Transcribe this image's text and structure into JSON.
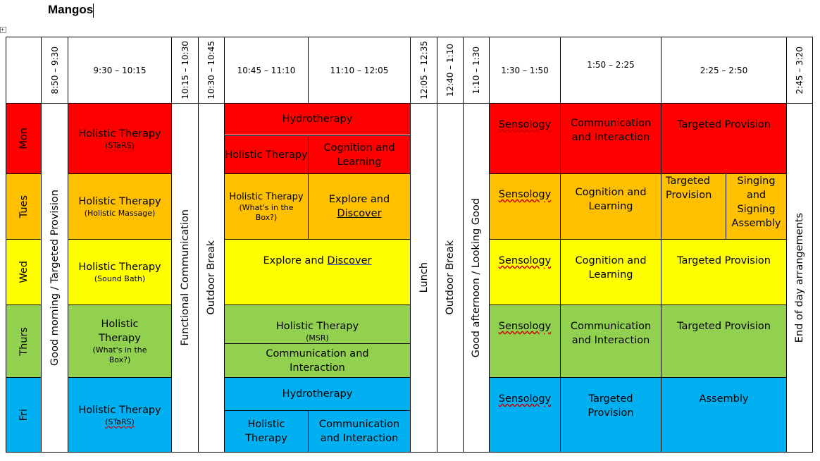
{
  "title": "Mangos",
  "colors": {
    "mon": "#ff0000",
    "tues": "#ffc000",
    "wed": "#ffff00",
    "thurs": "#92d050",
    "fri": "#00b0f0"
  },
  "times": [
    "8:50 – 9:30",
    "9:30 – 10:15",
    "10:15 – 10:30",
    "10:30 – 10:45",
    "10:45 – 11:10",
    "11:10 – 12:05",
    "12:05 – 12:35",
    "12:40 – 1:10",
    "1:10 – 1:30",
    "1:30 – 1:50",
    "1:50 – 2:25",
    "2:25 – 2:50",
    "2:45 – 3:20"
  ],
  "days": [
    "Mon",
    "Tues",
    "Wed",
    "Thurs",
    "Fri"
  ],
  "fixed": {
    "morning": "Good morning / Targeted Provision",
    "func": "Functional Communication",
    "break1": "Outdoor Break",
    "lunch": "Lunch",
    "break2": "Outdoor Break",
    "afternoon": "Good afternoon / Looking Good",
    "end": "End of day arrangements"
  },
  "mon": {
    "p1": "Holistic Therapy",
    "p1s": "(STaRS)",
    "hydro": "Hydrotherapy",
    "a": "Holistic Therapy",
    "b": "Cognition and Learning",
    "s": "Sensology",
    "c": "Communication and Interaction",
    "d": "Targeted Provision"
  },
  "tues": {
    "p1": "Holistic Therapy",
    "p1s": "(Holistic Massage)",
    "a": "Holistic Therapy",
    "as": "(What's in the Box?)",
    "b1": "Explore and",
    "b2": "Discover",
    "s": "Sensology",
    "c": "Cognition and Learning",
    "d1": "Targeted Provision",
    "d2": "Singing and Signing Assembly"
  },
  "wed": {
    "p1": "Holistic Therapy",
    "p1s": "(Sound Bath)",
    "a1": "Explore and",
    "a2": "Discover",
    "s": "Sensology",
    "c": "Cognition and Learning",
    "d": "Targeted Provision"
  },
  "thurs": {
    "p1": "Holistic Therapy",
    "p1s": "(What's in the Box?)",
    "a": "Holistic Therapy",
    "as": "(MSR)",
    "b": "Communication and Interaction",
    "s": "Sensology",
    "c": "Communication and Interaction",
    "d": "Targeted Provision"
  },
  "fri": {
    "p1": "Holistic Therapy",
    "p1s": "(STaRS)",
    "hydro": "Hydrotherapy",
    "a": "Holistic Therapy",
    "b": "Communication and Interaction",
    "s": "Sensology",
    "c": "Targeted Provision",
    "d": "Assembly"
  }
}
